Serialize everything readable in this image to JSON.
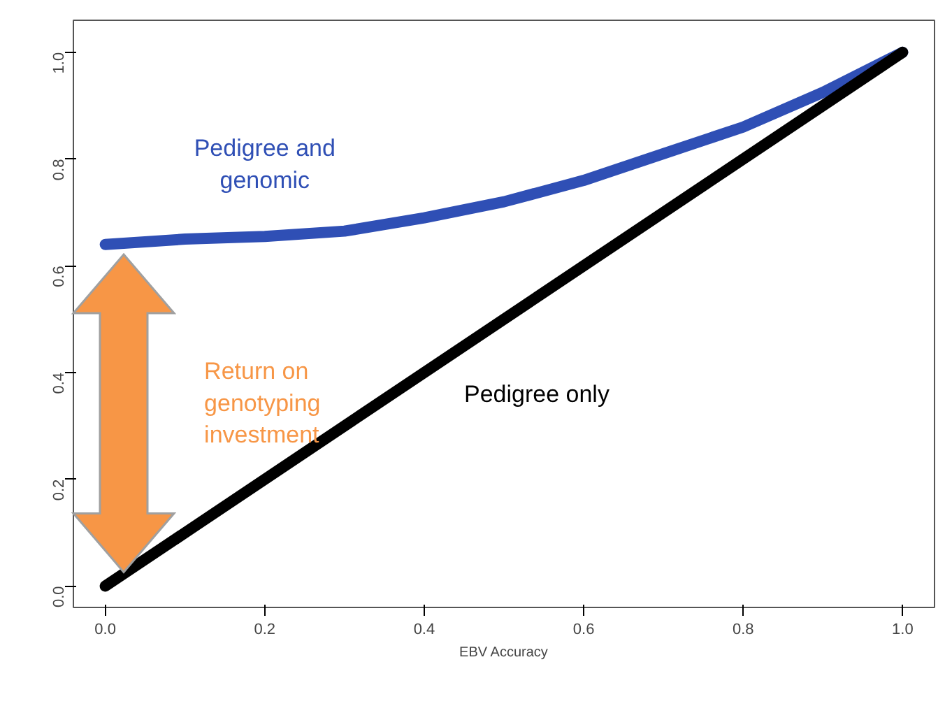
{
  "chart_data": {
    "type": "line",
    "xlabel": "EBV Accuracy",
    "xlim": [
      -0.04,
      1.04
    ],
    "ylim": [
      -0.04,
      1.06
    ],
    "xticks": [
      {
        "value": 0,
        "label": "0.0"
      },
      0.2,
      0.4,
      0.6,
      0.8,
      {
        "value": 1,
        "label": "1.0"
      }
    ],
    "yticks": [
      {
        "value": 0,
        "label": "0.0"
      },
      0.2,
      0.4,
      0.6,
      0.8,
      {
        "value": 1,
        "label": "1.0"
      }
    ],
    "grid": false,
    "legend": false,
    "line_style": "solid",
    "series": [
      {
        "name": "Pedigree and genomic",
        "color": "#2f4fb5",
        "x": [
          0.0,
          0.1,
          0.2,
          0.3,
          0.4,
          0.5,
          0.6,
          0.7,
          0.8,
          0.9,
          1.0
        ],
        "values": [
          0.64,
          0.65,
          0.655,
          0.665,
          0.69,
          0.72,
          0.76,
          0.81,
          0.86,
          0.925,
          1.0
        ]
      },
      {
        "name": "Pedigree only",
        "color": "#000000",
        "x": [
          0.0,
          1.0
        ],
        "values": [
          0.0,
          1.0
        ]
      }
    ],
    "annotations": [
      "Return on genotyping investment"
    ]
  }
}
